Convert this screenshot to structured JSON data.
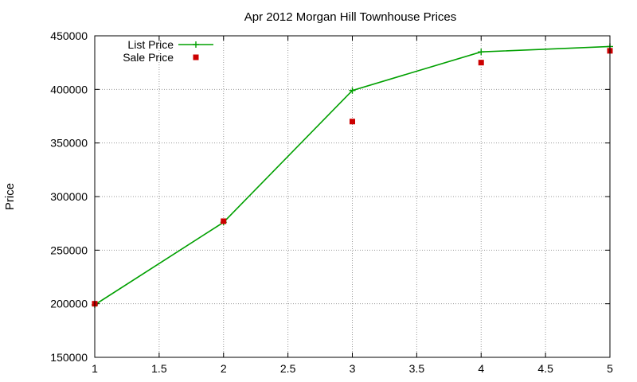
{
  "chart_data": {
    "type": "line",
    "title": "Apr 2012 Morgan Hill Townhouse Prices",
    "xlabel": "",
    "ylabel": "Price",
    "xlim": [
      1,
      5
    ],
    "ylim": [
      150000,
      450000
    ],
    "x_ticks": [
      "1",
      "1.5",
      "2",
      "2.5",
      "3",
      "3.5",
      "4",
      "4.5",
      "5"
    ],
    "y_ticks": [
      "150000",
      "200000",
      "250000",
      "300000",
      "350000",
      "400000",
      "450000"
    ],
    "grid": true,
    "legend_position": "top-left",
    "series": [
      {
        "name": "List Price",
        "style": "line-with-plus-markers",
        "color": "#00a000",
        "x": [
          1,
          2,
          3,
          4,
          5
        ],
        "values": [
          199000,
          276000,
          399000,
          435000,
          440000
        ]
      },
      {
        "name": "Sale Price",
        "style": "square-markers",
        "color": "#cc0000",
        "x": [
          1,
          2,
          3,
          4,
          5
        ],
        "values": [
          200000,
          277000,
          370000,
          425000,
          436000
        ]
      }
    ]
  }
}
